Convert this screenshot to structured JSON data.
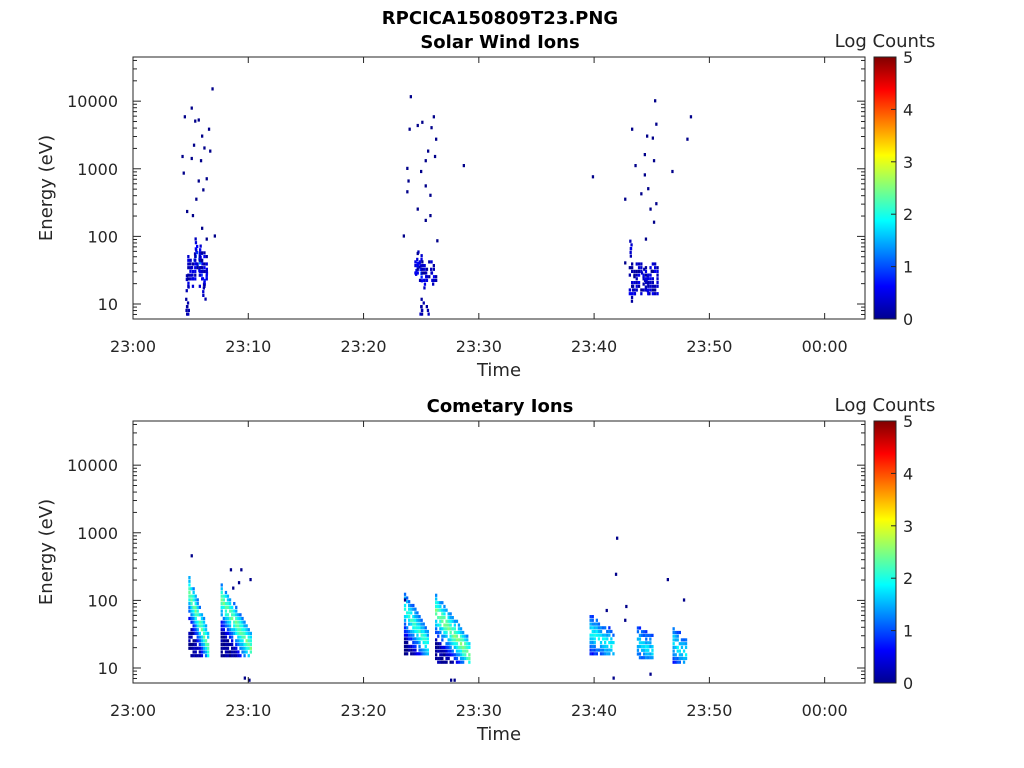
{
  "figure": {
    "title": "RPCICA150809T23.PNG"
  },
  "chart_data": [
    {
      "type": "heatmap",
      "title": "Solar Wind Ions",
      "xlabel": "Time",
      "ylabel": "Energy (eV)",
      "x_tick_labels": [
        "23:00",
        "23:10",
        "23:20",
        "23:30",
        "23:40",
        "23:50",
        "00:00"
      ],
      "x_range_minutes": [
        0,
        63.5
      ],
      "y_scale": "log",
      "y_range": [
        6,
        45000
      ],
      "y_tick_labels": [
        "10",
        "100",
        "1000",
        "10000"
      ],
      "y_tick_values": [
        10,
        100,
        1000,
        10000
      ],
      "colorbar": {
        "label": "Log Counts",
        "min": 0,
        "max": 5,
        "ticks": [
          "0",
          "1",
          "2",
          "3",
          "4",
          "5"
        ],
        "colormap": "jet"
      },
      "clusters": [
        {
          "t_range": [
            4.7,
            6.5
          ],
          "dense_energy": [
            18,
            60
          ],
          "sparse": [
            [
              4.4,
              5800
            ],
            [
              5.0,
              7800
            ],
            [
              5.3,
              5000
            ],
            [
              5.6,
              5200
            ],
            [
              6.8,
              15000
            ],
            [
              6.5,
              3800
            ],
            [
              5.9,
              3000
            ],
            [
              5.2,
              2200
            ],
            [
              6.1,
              2000
            ],
            [
              6.6,
              1800
            ],
            [
              4.2,
              1500
            ],
            [
              5.0,
              1400
            ],
            [
              5.8,
              1300
            ],
            [
              4.3,
              850
            ],
            [
              6.3,
              700
            ],
            [
              5.6,
              650
            ],
            [
              6.0,
              480
            ],
            [
              5.4,
              350
            ],
            [
              4.6,
              230
            ],
            [
              5.1,
              200
            ],
            [
              5.9,
              130
            ],
            [
              7.0,
              100
            ],
            [
              6.3,
              90
            ]
          ],
          "dense": [
            [
              5.3,
              50,
              1.2
            ],
            [
              5.6,
              40,
              1.3
            ],
            [
              5.9,
              30,
              1.1
            ],
            [
              6.2,
              25,
              1.0
            ],
            [
              5.4,
              70,
              0.6
            ],
            [
              4.6,
              20,
              0.5
            ],
            [
              6.1,
              15,
              0.4
            ],
            [
              4.6,
              9,
              0.3
            ],
            [
              4.6,
              7,
              0.3
            ],
            [
              5.0,
              30,
              0.5
            ],
            [
              5.8,
              55,
              0.8
            ]
          ]
        },
        {
          "t_range": [
            24.4,
            26.3
          ],
          "dense_energy": [
            22,
            45
          ],
          "sparse": [
            [
              24.0,
              11500
            ],
            [
              23.9,
              3800
            ],
            [
              24.6,
              4300
            ],
            [
              25.0,
              4800
            ],
            [
              26.0,
              5800
            ],
            [
              26.2,
              2700
            ],
            [
              25.8,
              4000
            ],
            [
              25.5,
              1800
            ],
            [
              25.3,
              1300
            ],
            [
              26.1,
              1500
            ],
            [
              28.6,
              1100
            ],
            [
              23.7,
              1000
            ],
            [
              24.9,
              900
            ],
            [
              23.8,
              650
            ],
            [
              25.3,
              550
            ],
            [
              23.7,
              450
            ],
            [
              25.7,
              400
            ],
            [
              24.6,
              250
            ],
            [
              25.7,
              200
            ],
            [
              25.3,
              170
            ],
            [
              23.4,
              100
            ],
            [
              26.3,
              85
            ],
            [
              24.6,
              55
            ]
          ],
          "dense": [
            [
              24.6,
              35,
              0.9
            ],
            [
              24.9,
              28,
              1.0
            ],
            [
              25.2,
              22,
              0.7
            ],
            [
              25.9,
              25,
              0.6
            ],
            [
              24.8,
              45,
              0.5
            ],
            [
              25.0,
              9,
              0.3
            ],
            [
              25.4,
              7,
              0.3
            ],
            [
              24.9,
              7,
              0.3
            ]
          ]
        },
        {
          "t_range": [
            43.0,
            45.5
          ],
          "dense_energy": [
            14,
            40
          ],
          "sparse": [
            [
              45.2,
              10000
            ],
            [
              48.3,
              5800
            ],
            [
              43.2,
              3800
            ],
            [
              45.3,
              4500
            ],
            [
              44.5,
              3000
            ],
            [
              45.0,
              2800
            ],
            [
              48.0,
              2700
            ],
            [
              44.3,
              1600
            ],
            [
              45.1,
              1300
            ],
            [
              43.5,
              1100
            ],
            [
              46.7,
              900
            ],
            [
              44.3,
              800
            ],
            [
              39.8,
              750
            ],
            [
              44.6,
              500
            ],
            [
              44.0,
              420
            ],
            [
              45.3,
              300
            ],
            [
              42.6,
              350
            ],
            [
              44.8,
              250
            ],
            [
              45.1,
              160
            ],
            [
              44.4,
              90
            ],
            [
              43.1,
              65
            ],
            [
              42.6,
              40
            ],
            [
              44.9,
              30
            ],
            [
              43.4,
              25
            ],
            [
              44.7,
              14
            ]
          ],
          "dense": [
            [
              43.0,
              65,
              0.5
            ],
            [
              44.5,
              20,
              0.4
            ],
            [
              44.2,
              25,
              0.4
            ],
            [
              43.3,
              14,
              0.3
            ]
          ]
        }
      ]
    },
    {
      "type": "heatmap",
      "title": "Cometary Ions",
      "xlabel": "Time",
      "ylabel": "Energy (eV)",
      "x_tick_labels": [
        "23:00",
        "23:10",
        "23:20",
        "23:30",
        "23:40",
        "23:50",
        "00:00"
      ],
      "x_range_minutes": [
        0,
        63.5
      ],
      "y_scale": "log",
      "y_range": [
        6,
        45000
      ],
      "y_tick_labels": [
        "10",
        "100",
        "1000",
        "10000"
      ],
      "y_tick_values": [
        10,
        100,
        1000,
        10000
      ],
      "colorbar": {
        "label": "Log Counts",
        "min": 0,
        "max": 5,
        "ticks": [
          "0",
          "1",
          "2",
          "3",
          "4",
          "5"
        ],
        "colormap": "jet"
      },
      "bursts": [
        {
          "t0": 4.8,
          "t1": 6.5,
          "elo": 15,
          "ehi": 230,
          "peak": 2.3
        },
        {
          "t0": 7.6,
          "t1": 10.2,
          "elo": 15,
          "ehi": 180,
          "peak": 2.3
        },
        {
          "t0": 23.5,
          "t1": 25.6,
          "elo": 16,
          "ehi": 130,
          "peak": 2.0
        },
        {
          "t0": 26.2,
          "t1": 29.2,
          "elo": 12,
          "ehi": 120,
          "peak": 2.4
        },
        {
          "t0": 39.6,
          "t1": 41.6,
          "elo": 16,
          "ehi": 60,
          "peak": 1.8
        },
        {
          "t0": 43.7,
          "t1": 45.0,
          "elo": 14,
          "ehi": 40,
          "peak": 1.6
        },
        {
          "t0": 46.8,
          "t1": 48.0,
          "elo": 12,
          "ehi": 42,
          "peak": 1.7
        }
      ],
      "sparse": [
        [
          5.0,
          450
        ],
        [
          8.4,
          280
        ],
        [
          9.3,
          280
        ],
        [
          10.1,
          200
        ],
        [
          8.6,
          150
        ],
        [
          9.1,
          180
        ],
        [
          23.5,
          100
        ],
        [
          41.9,
          820
        ],
        [
          41.8,
          240
        ],
        [
          42.7,
          80
        ],
        [
          46.3,
          200
        ],
        [
          47.7,
          100
        ],
        [
          41.0,
          70
        ],
        [
          42.6,
          50
        ],
        [
          9.6,
          7
        ],
        [
          10.0,
          6.5
        ],
        [
          27.5,
          6.5
        ],
        [
          27.8,
          6.5
        ],
        [
          41.6,
          7
        ],
        [
          44.8,
          8
        ]
      ]
    }
  ]
}
